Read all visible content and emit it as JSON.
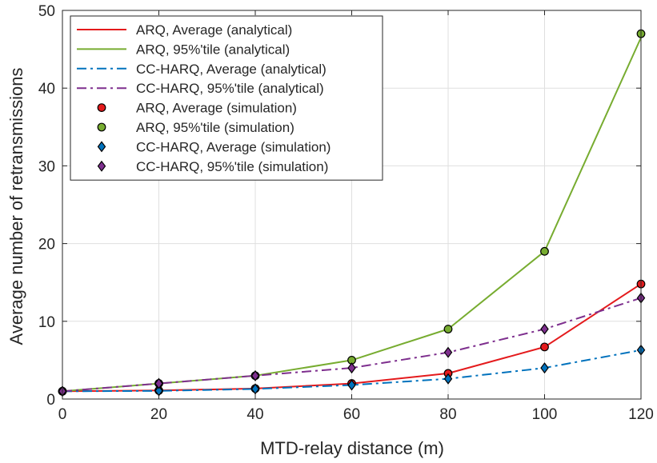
{
  "chart_data": {
    "type": "line",
    "xlabel": "MTD-relay distance (m)",
    "ylabel": "Average number of retransmissions",
    "xlim": [
      0,
      120
    ],
    "ylim": [
      0,
      50
    ],
    "xticks": [
      0,
      20,
      40,
      60,
      80,
      100,
      120
    ],
    "yticks": [
      0,
      10,
      20,
      30,
      40,
      50
    ],
    "x": [
      0,
      20,
      40,
      60,
      80,
      100,
      120
    ],
    "grid": true,
    "legend_position": "top-left",
    "series": [
      {
        "name": "ARQ, Average (analytical)",
        "kind": "line",
        "color": "#e41a1c",
        "dash": "solid",
        "values": [
          1.0,
          1.1,
          1.35,
          2.0,
          3.3,
          6.7,
          14.8
        ]
      },
      {
        "name": "ARQ, 95%'tile (analytical)",
        "kind": "line",
        "color": "#77ac30",
        "dash": "solid",
        "values": [
          1.0,
          2.0,
          3.0,
          5.0,
          9.0,
          19.0,
          46.5
        ]
      },
      {
        "name": "CC-HARQ, Average (analytical)",
        "kind": "line",
        "color": "#0072bd",
        "dash": "dashdot",
        "values": [
          1.0,
          1.05,
          1.3,
          1.8,
          2.6,
          4.0,
          6.3
        ]
      },
      {
        "name": "CC-HARQ, 95%'tile (analytical)",
        "kind": "line",
        "color": "#7e2f8e",
        "dash": "dashdot",
        "values": [
          1.0,
          2.0,
          3.0,
          4.0,
          6.0,
          9.0,
          13.0
        ]
      },
      {
        "name": "ARQ, Average (simulation)",
        "kind": "marker",
        "marker": "circle",
        "color": "#e41a1c",
        "values": [
          1.0,
          1.1,
          1.35,
          2.0,
          3.3,
          6.7,
          14.8
        ]
      },
      {
        "name": "ARQ, 95%'tile (simulation)",
        "kind": "marker",
        "marker": "circle",
        "color": "#77ac30",
        "values": [
          1.0,
          2.0,
          3.0,
          5.0,
          9.0,
          19.0,
          47.0
        ]
      },
      {
        "name": "CC-HARQ, Average (simulation)",
        "kind": "marker",
        "marker": "diamond",
        "color": "#0072bd",
        "values": [
          1.0,
          1.05,
          1.3,
          1.8,
          2.6,
          4.0,
          6.3
        ]
      },
      {
        "name": "CC-HARQ, 95%'tile (simulation)",
        "kind": "marker",
        "marker": "diamond",
        "color": "#7e2f8e",
        "values": [
          1.0,
          2.0,
          3.0,
          4.0,
          6.0,
          9.0,
          13.0
        ]
      }
    ]
  }
}
